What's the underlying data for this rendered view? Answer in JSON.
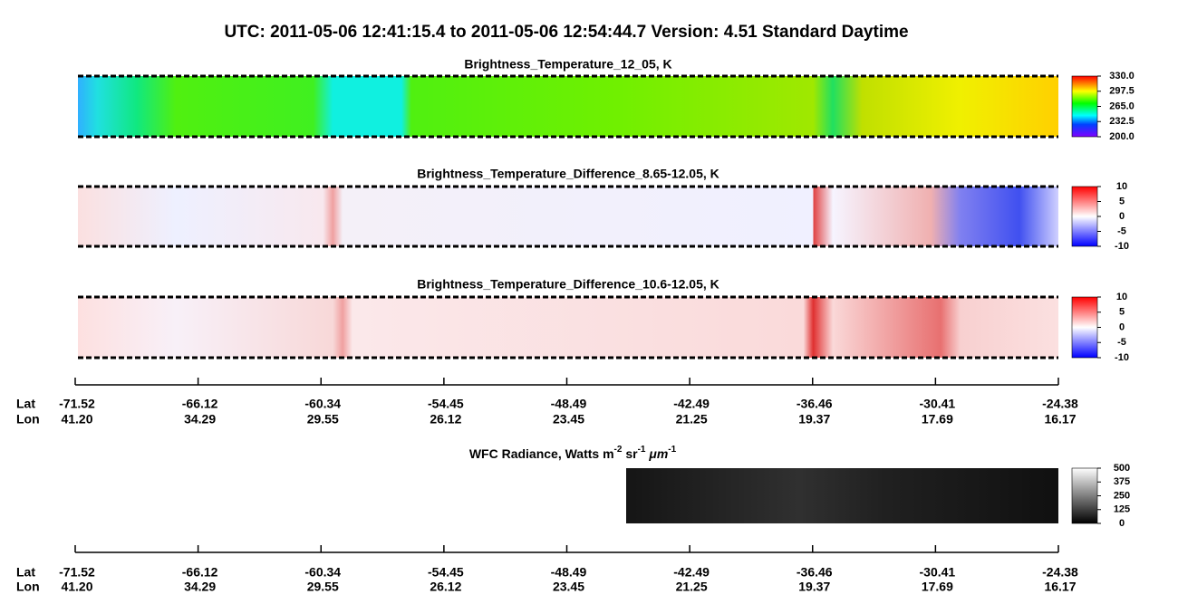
{
  "title": "UTC:  2011-05-06   12:41:15.4  to  2011-05-06   12:54:44.7    Version: 4.51  Standard Daytime",
  "chart_data": [
    {
      "type": "heatmap",
      "title": "Brightness_Temperature_12_05, K",
      "colormap": "rainbow",
      "clim": [
        200,
        330
      ],
      "cticks": [
        {
          "value": 200,
          "label": "200.0"
        },
        {
          "value": 232.5,
          "label": "232.5"
        },
        {
          "value": 265,
          "label": "265.0"
        },
        {
          "value": 297.5,
          "label": "297.5"
        },
        {
          "value": 330,
          "label": "330.0"
        }
      ]
    },
    {
      "type": "heatmap",
      "title": "Brightness_Temperature_Difference_8.65-12.05, K",
      "colormap": "bwr",
      "clim": [
        -10,
        10
      ],
      "cticks": [
        -10,
        -5,
        0,
        5,
        10
      ]
    },
    {
      "type": "heatmap",
      "title": "Brightness_Temperature_Difference_10.6-12.05, K",
      "colormap": "bwr",
      "clim": [
        -10,
        10
      ],
      "cticks": [
        -10,
        -5,
        0,
        5,
        10
      ]
    },
    {
      "type": "heatmap",
      "title_parts": [
        "WFC Radiance, Watts m",
        "-2",
        " sr",
        "-1",
        " μm",
        "-1"
      ],
      "colormap": "gray",
      "clim": [
        0,
        500
      ],
      "cticks": [
        0,
        125,
        250,
        375,
        500
      ]
    }
  ],
  "axis": {
    "labels": [
      "Lat",
      "Lon"
    ],
    "lat": [
      -71.52,
      -66.12,
      -60.34,
      -54.45,
      -48.49,
      -42.49,
      -36.46,
      -30.41,
      -24.38
    ],
    "lon": [
      {
        "value": 41.2,
        "label": "41.20"
      },
      34.29,
      29.55,
      26.12,
      23.45,
      21.25,
      19.37,
      17.69,
      16.17
    ]
  }
}
